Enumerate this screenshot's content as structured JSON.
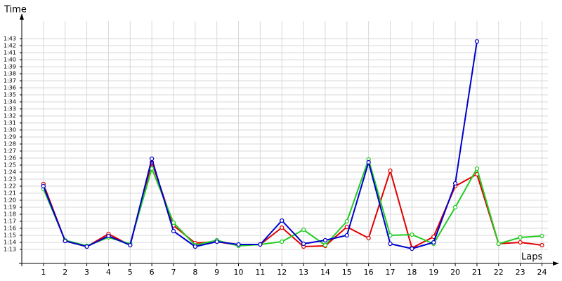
{
  "chart_data": {
    "type": "line",
    "x_label": "Laps",
    "y_label": "Time",
    "x": [
      1,
      2,
      3,
      4,
      5,
      6,
      7,
      8,
      9,
      10,
      11,
      12,
      13,
      14,
      15,
      16,
      17,
      18,
      19,
      20,
      21,
      22,
      23,
      24
    ],
    "xlim": [
      0,
      24.6
    ],
    "ylim": [
      71,
      106
    ],
    "yticks": [
      {
        "value": 73,
        "label": "1:13"
      },
      {
        "value": 74,
        "label": "1:14"
      },
      {
        "value": 75,
        "label": "1:15"
      },
      {
        "value": 76,
        "label": "1:16"
      },
      {
        "value": 77,
        "label": "1:17"
      },
      {
        "value": 78,
        "label": "1:18"
      },
      {
        "value": 79,
        "label": "1:19"
      },
      {
        "value": 80,
        "label": "1:20"
      },
      {
        "value": 81,
        "label": "1:21"
      },
      {
        "value": 82,
        "label": "1:22"
      },
      {
        "value": 83,
        "label": "1:23"
      },
      {
        "value": 84,
        "label": "1:24"
      },
      {
        "value": 85,
        "label": "1:25"
      },
      {
        "value": 86,
        "label": "1:26"
      },
      {
        "value": 87,
        "label": "1:27"
      },
      {
        "value": 88,
        "label": "1:28"
      },
      {
        "value": 89,
        "label": "1:29"
      },
      {
        "value": 90,
        "label": "1:30"
      },
      {
        "value": 91,
        "label": "1:31"
      },
      {
        "value": 92,
        "label": "1:32"
      },
      {
        "value": 93,
        "label": "1:33"
      },
      {
        "value": 94,
        "label": "1:34"
      },
      {
        "value": 95,
        "label": "1:35"
      },
      {
        "value": 96,
        "label": "1:36"
      },
      {
        "value": 97,
        "label": "1:37"
      },
      {
        "value": 98,
        "label": "1:38"
      },
      {
        "value": 99,
        "label": "1:39"
      },
      {
        "value": 100,
        "label": "1:40"
      },
      {
        "value": 101,
        "label": "1:41"
      },
      {
        "value": 102,
        "label": "1:42"
      },
      {
        "value": 103,
        "label": "1:43"
      }
    ],
    "grid": true,
    "series": [
      {
        "color": "#e00000",
        "values": [
          82.3,
          74.2,
          73.4,
          75.2,
          73.6,
          85.4,
          76.4,
          73.9,
          74.1,
          73.6,
          73.7,
          76.1,
          73.4,
          73.5,
          76.2,
          74.6,
          84.2,
          73.2,
          74.8,
          82.0,
          83.7,
          73.8,
          74.0,
          73.6
        ]
      },
      {
        "color": "#22cc22",
        "values": [
          81.6,
          74.3,
          73.5,
          74.7,
          73.8,
          84.5,
          76.8,
          73.6,
          74.3,
          73.5,
          73.7,
          74.1,
          75.8,
          73.6,
          77.0,
          85.8,
          75.0,
          75.1,
          73.8,
          79.0,
          84.5,
          73.8,
          74.7,
          74.9
        ]
      },
      {
        "color": "#0000cc",
        "values": [
          82.0,
          74.2,
          73.4,
          74.9,
          73.6,
          85.9,
          75.6,
          73.4,
          74.1,
          73.7,
          73.7,
          77.1,
          73.8,
          74.3,
          75.0,
          85.4,
          73.8,
          73.1,
          74.0,
          82.4,
          102.6,
          null,
          null,
          null
        ]
      }
    ]
  }
}
